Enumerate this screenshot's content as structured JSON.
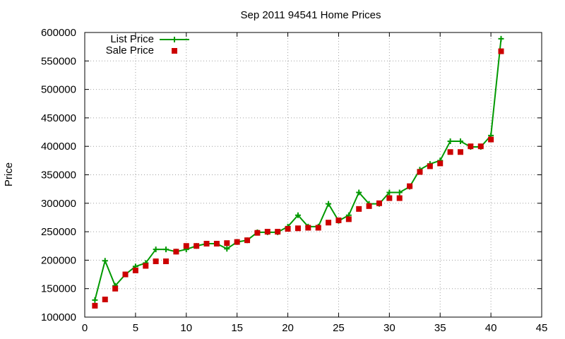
{
  "chart_data": {
    "type": "line",
    "title": "Sep 2011 94541 Home Prices",
    "xlabel": "",
    "ylabel": "Price",
    "xlim": [
      0,
      45
    ],
    "ylim": [
      100000,
      600000
    ],
    "xticks": [
      0,
      5,
      10,
      15,
      20,
      25,
      30,
      35,
      40,
      45
    ],
    "yticks": [
      100000,
      150000,
      200000,
      250000,
      300000,
      350000,
      400000,
      450000,
      500000,
      550000,
      600000
    ],
    "grid": true,
    "legend_position": "top-left",
    "series": [
      {
        "name": "List Price",
        "color": "#009900",
        "style": "line-with-plus-markers",
        "x": [
          1,
          2,
          3,
          4,
          5,
          6,
          7,
          8,
          9,
          10,
          11,
          12,
          13,
          14,
          15,
          16,
          17,
          18,
          19,
          20,
          21,
          22,
          23,
          24,
          25,
          26,
          27,
          28,
          29,
          30,
          31,
          32,
          33,
          34,
          35,
          36,
          37,
          38,
          39,
          40,
          41
        ],
        "values": [
          130000,
          199000,
          155000,
          175000,
          189000,
          195000,
          219000,
          219000,
          215000,
          219000,
          225000,
          229000,
          229000,
          220000,
          232000,
          235000,
          249000,
          249000,
          249000,
          259000,
          279000,
          259000,
          259000,
          299000,
          269000,
          279000,
          319000,
          299000,
          299000,
          319000,
          319000,
          329000,
          359000,
          369000,
          375000,
          409000,
          409000,
          399000,
          399000,
          419000,
          589000
        ]
      },
      {
        "name": "Sale Price",
        "color": "#cc0000",
        "style": "square-markers",
        "x": [
          1,
          2,
          3,
          4,
          5,
          6,
          7,
          8,
          9,
          10,
          11,
          12,
          13,
          14,
          15,
          16,
          17,
          18,
          19,
          20,
          21,
          22,
          23,
          24,
          25,
          26,
          27,
          28,
          29,
          30,
          31,
          32,
          33,
          34,
          35,
          36,
          37,
          38,
          39,
          40,
          41
        ],
        "values": [
          120000,
          131000,
          150000,
          175000,
          182000,
          190000,
          198000,
          198000,
          215000,
          225000,
          225000,
          229000,
          229000,
          230000,
          232000,
          235000,
          248000,
          250000,
          250000,
          255000,
          256000,
          257000,
          257000,
          266000,
          270000,
          272000,
          290000,
          295000,
          300000,
          309000,
          309000,
          330000,
          355000,
          365000,
          370000,
          390000,
          390000,
          400000,
          400000,
          412000,
          567000
        ]
      }
    ]
  }
}
